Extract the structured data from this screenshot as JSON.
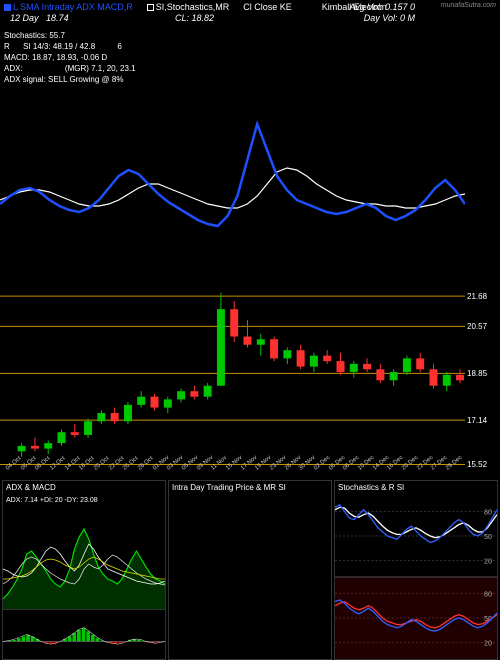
{
  "header": {
    "legend_items": [
      "L SMA Intraday ADX MACD,R",
      "SI,Stochastics,MR",
      "Cl Close KE",
      "Kimball Electron"
    ],
    "avg_vol_label": "Avg Vol:",
    "avg_vol_value": "0.157  0",
    "bottom_left": "12 Day",
    "bottom_left_val": "18.74",
    "cl_label": "CL:",
    "cl_value": "18.82",
    "day_vol_label": "Day Vol:",
    "day_vol_value": "0   M",
    "source": "munafaSutra.com"
  },
  "stats": {
    "l1": "Stochastics: 55.7",
    "l2a": "R",
    "l2b": "SI 14/3: 48.19 / 42.8",
    "l2c": "6",
    "l3": "MACD: 18.87,  18.93,  -0.06   D",
    "l4a": "ADX:",
    "l4b": "(MGR) 7.1,  20,  23.1",
    "l5": "ADX  signal: SELL  Growing @ 8%"
  },
  "main_chart": {
    "blue_points": [
      78,
      82,
      85,
      86,
      84,
      80,
      77,
      75,
      74,
      76,
      80,
      86,
      92,
      95,
      93,
      88,
      83,
      79,
      76,
      73,
      70,
      68,
      67,
      72,
      82,
      100,
      118,
      105,
      92,
      85,
      80,
      78,
      76,
      74,
      73,
      74,
      76,
      78,
      76,
      72,
      70,
      72,
      75,
      80,
      86,
      90,
      85,
      78
    ],
    "white_points": [
      80,
      82,
      84,
      85,
      85,
      84,
      82,
      80,
      78,
      77,
      77,
      78,
      80,
      83,
      86,
      88,
      88,
      86,
      84,
      82,
      80,
      78,
      77,
      76,
      76,
      78,
      82,
      88,
      94,
      96,
      95,
      92,
      88,
      85,
      82,
      80,
      79,
      78,
      78,
      77,
      77,
      76,
      76,
      77,
      78,
      80,
      82,
      83
    ],
    "color_blue": "#1e50ff",
    "color_white": "#ffffff"
  },
  "candle_chart": {
    "ylim": [
      15.5,
      23.0
    ],
    "hlines": [
      21.68,
      20.57,
      18.85,
      17.14,
      15.52
    ],
    "hline_labels": [
      "21.68",
      "20.57",
      "18.85",
      "17.14",
      "15.52"
    ],
    "candles": [
      {
        "o": 16.0,
        "h": 16.3,
        "l": 15.8,
        "c": 16.2,
        "up": true
      },
      {
        "o": 16.2,
        "h": 16.5,
        "l": 16.0,
        "c": 16.1,
        "up": false
      },
      {
        "o": 16.1,
        "h": 16.4,
        "l": 15.9,
        "c": 16.3,
        "up": true
      },
      {
        "o": 16.3,
        "h": 16.8,
        "l": 16.2,
        "c": 16.7,
        "up": true
      },
      {
        "o": 16.7,
        "h": 17.0,
        "l": 16.5,
        "c": 16.6,
        "up": false
      },
      {
        "o": 16.6,
        "h": 17.2,
        "l": 16.5,
        "c": 17.1,
        "up": true
      },
      {
        "o": 17.1,
        "h": 17.5,
        "l": 17.0,
        "c": 17.4,
        "up": true
      },
      {
        "o": 17.4,
        "h": 17.6,
        "l": 17.0,
        "c": 17.1,
        "up": false
      },
      {
        "o": 17.1,
        "h": 17.8,
        "l": 17.0,
        "c": 17.7,
        "up": true
      },
      {
        "o": 17.7,
        "h": 18.2,
        "l": 17.6,
        "c": 18.0,
        "up": true
      },
      {
        "o": 18.0,
        "h": 18.1,
        "l": 17.5,
        "c": 17.6,
        "up": false
      },
      {
        "o": 17.6,
        "h": 18.0,
        "l": 17.4,
        "c": 17.9,
        "up": true
      },
      {
        "o": 17.9,
        "h": 18.3,
        "l": 17.8,
        "c": 18.2,
        "up": true
      },
      {
        "o": 18.2,
        "h": 18.4,
        "l": 17.9,
        "c": 18.0,
        "up": false
      },
      {
        "o": 18.0,
        "h": 18.5,
        "l": 17.9,
        "c": 18.4,
        "up": true
      },
      {
        "o": 18.4,
        "h": 21.8,
        "l": 18.4,
        "c": 21.2,
        "up": true
      },
      {
        "o": 21.2,
        "h": 21.5,
        "l": 20.0,
        "c": 20.2,
        "up": false
      },
      {
        "o": 20.2,
        "h": 20.8,
        "l": 19.8,
        "c": 19.9,
        "up": false
      },
      {
        "o": 19.9,
        "h": 20.3,
        "l": 19.5,
        "c": 20.1,
        "up": true
      },
      {
        "o": 20.1,
        "h": 20.2,
        "l": 19.3,
        "c": 19.4,
        "up": false
      },
      {
        "o": 19.4,
        "h": 19.8,
        "l": 19.2,
        "c": 19.7,
        "up": true
      },
      {
        "o": 19.7,
        "h": 19.9,
        "l": 19.0,
        "c": 19.1,
        "up": false
      },
      {
        "o": 19.1,
        "h": 19.6,
        "l": 18.9,
        "c": 19.5,
        "up": true
      },
      {
        "o": 19.5,
        "h": 19.7,
        "l": 19.2,
        "c": 19.3,
        "up": false
      },
      {
        "o": 19.3,
        "h": 19.6,
        "l": 18.8,
        "c": 18.9,
        "up": false
      },
      {
        "o": 18.9,
        "h": 19.3,
        "l": 18.7,
        "c": 19.2,
        "up": true
      },
      {
        "o": 19.2,
        "h": 19.4,
        "l": 18.9,
        "c": 19.0,
        "up": false
      },
      {
        "o": 19.0,
        "h": 19.2,
        "l": 18.5,
        "c": 18.6,
        "up": false
      },
      {
        "o": 18.6,
        "h": 19.0,
        "l": 18.4,
        "c": 18.9,
        "up": true
      },
      {
        "o": 18.9,
        "h": 19.5,
        "l": 18.8,
        "c": 19.4,
        "up": true
      },
      {
        "o": 19.4,
        "h": 19.6,
        "l": 18.9,
        "c": 19.0,
        "up": false
      },
      {
        "o": 19.0,
        "h": 19.2,
        "l": 18.3,
        "c": 18.4,
        "up": false
      },
      {
        "o": 18.4,
        "h": 18.9,
        "l": 18.2,
        "c": 18.8,
        "up": true
      },
      {
        "o": 18.8,
        "h": 19.0,
        "l": 18.5,
        "c": 18.6,
        "up": false
      },
      {
        "o": 18.6,
        "h": 19.0,
        "l": 18.4,
        "c": 18.82,
        "up": true
      }
    ],
    "up_color": "#00c800",
    "down_color": "#ff3030"
  },
  "dates": [
    "04 Oct",
    "06 Oct",
    "08 Oct",
    "12 Oct",
    "14 Oct",
    "18 Oct",
    "20 Oct",
    "22 Oct",
    "26 Oct",
    "28 Oct",
    "01 Nov",
    "03 Nov",
    "05 Nov",
    "09 Nov",
    "11 Nov",
    "15 Nov",
    "17 Nov",
    "19 Nov",
    "23 Nov",
    "26 Nov",
    "30 Nov",
    "02 Dec",
    "06 Dec",
    "08 Dec",
    "10 Dec",
    "14 Dec",
    "16 Dec",
    "20 Dec",
    "22 Dec",
    "27 Dec",
    "29 Dec"
  ],
  "bottom": {
    "adx": {
      "title": "ADX  & MACD",
      "readout": "ADX: 7.14   +DI: 20   -DY: 23.08",
      "green": [
        10,
        15,
        22,
        30,
        40,
        55,
        58,
        52,
        45,
        38,
        30,
        25,
        22,
        28,
        40,
        60,
        72,
        80,
        70,
        55,
        42,
        35,
        30,
        28,
        25,
        30,
        40,
        50,
        58,
        50,
        42,
        35,
        30,
        28,
        25
      ],
      "white1": [
        40,
        38,
        35,
        33,
        32,
        33,
        36,
        42,
        50,
        58,
        62,
        60,
        55,
        48,
        42,
        38,
        44,
        55,
        65,
        60,
        52,
        46,
        40,
        38,
        36,
        34,
        32,
        30,
        28,
        27,
        26,
        25,
        25,
        26,
        28
      ],
      "white2": [
        25,
        28,
        32,
        38,
        45,
        50,
        52,
        50,
        45,
        40,
        36,
        33,
        30,
        28,
        26,
        25,
        30,
        40,
        45,
        42,
        40,
        44,
        50,
        54,
        52,
        48,
        44,
        40,
        36,
        33,
        30,
        28,
        26,
        25,
        24
      ],
      "yellow": [
        30,
        30,
        31,
        32,
        33,
        35,
        38,
        42,
        46,
        49,
        50,
        49,
        47,
        44,
        42,
        40,
        42,
        46,
        50,
        52,
        50,
        47,
        44,
        42,
        40,
        38,
        37,
        36,
        35,
        34,
        33,
        32,
        31,
        30,
        30
      ],
      "macd_hist": [
        0,
        1,
        2,
        4,
        6,
        8,
        6,
        3,
        0,
        -2,
        -3,
        -2,
        0,
        3,
        6,
        10,
        14,
        16,
        12,
        8,
        4,
        1,
        -1,
        -2,
        -3,
        -2,
        0,
        2,
        3,
        2,
        0,
        -1,
        -2,
        -1,
        0
      ]
    },
    "mid": {
      "title": "Intra  Day Trading Price  & MR          SI"
    },
    "stoch": {
      "title": "Stochastics & R                    SI",
      "scale": [
        "80",
        "50",
        "20"
      ],
      "scale2": [
        "80",
        "50",
        "20"
      ],
      "blue1": [
        85,
        88,
        80,
        72,
        70,
        76,
        82,
        76,
        68,
        60,
        55,
        50,
        48,
        46,
        52,
        58,
        62,
        56,
        50,
        46,
        42,
        44,
        48,
        54,
        60,
        66,
        70,
        66,
        58,
        52,
        50,
        54,
        62,
        72,
        82
      ],
      "white1": [
        82,
        85,
        84,
        78,
        74,
        73,
        76,
        78,
        74,
        68,
        62,
        57,
        54,
        52,
        52,
        55,
        58,
        60,
        57,
        53,
        50,
        48,
        49,
        52,
        56,
        60,
        64,
        66,
        63,
        58,
        55,
        55,
        60,
        68,
        76
      ],
      "blue2": [
        70,
        72,
        68,
        62,
        58,
        55,
        58,
        62,
        58,
        52,
        46,
        42,
        40,
        38,
        40,
        44,
        48,
        46,
        42,
        38,
        35,
        34,
        36,
        40,
        44,
        48,
        50,
        48,
        44,
        40,
        38,
        40,
        44,
        50,
        56
      ],
      "red2": [
        65,
        68,
        70,
        66,
        62,
        60,
        62,
        65,
        62,
        56,
        50,
        46,
        44,
        42,
        42,
        44,
        46,
        48,
        46,
        42,
        39,
        38,
        40,
        44,
        48,
        52,
        54,
        52,
        48,
        44,
        42,
        43,
        46,
        50,
        54
      ],
      "bg2": "#200000"
    }
  }
}
